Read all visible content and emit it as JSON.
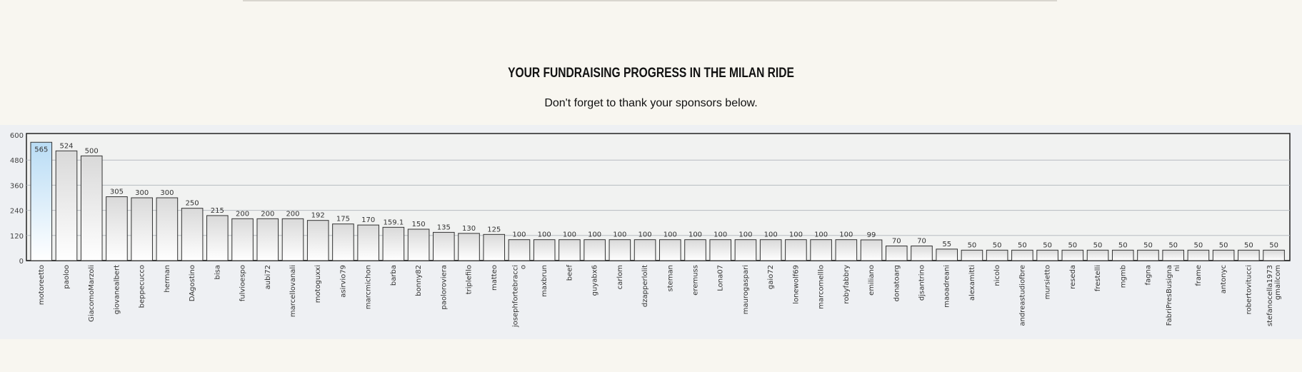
{
  "page": {
    "title": "YOUR FUNDRAISING PROGRESS IN THE MILAN RIDE",
    "subtitle": "Don't forget to thank your sponsors below."
  },
  "colors": {
    "background": "#f8f6f0",
    "chart_panel": "#eef0f3",
    "bar_fill_top": "#d9d9d9",
    "bar_fill_bottom": "#ffffff",
    "bar_highlight_top": "#b9dcf5",
    "bar_stroke": "#333333",
    "grid": "#b7bcc2"
  },
  "chart_data": {
    "type": "bar",
    "title": "",
    "xlabel": "",
    "ylabel": "",
    "ylim": [
      0,
      600
    ],
    "yticks": [
      0,
      120,
      240,
      360,
      480,
      600
    ],
    "grid": true,
    "highlight_index": 0,
    "categories": [
      "motoreetto",
      "paoloo",
      "GiacomoMarzoli",
      "giovanealbert",
      "beppecucco",
      "herman",
      "DAgostino",
      "bisa",
      "fulvioespo",
      "aubi72",
      "marcellovanali",
      "motoguxxi",
      "asirvio79",
      "marcmichon",
      "barba",
      "bonny82",
      "paoloroviera",
      "triplefilo",
      "matteo",
      [
        "josephfortebracci",
        "o"
      ],
      "maxbrun",
      "beef",
      "guyabx6",
      "carlom",
      "dzapperlolit",
      "steman",
      "eremuss",
      "Lona07",
      "maurogaspari",
      "gaio72",
      "lonewolf69",
      "marcomelllo",
      "robyfabbry",
      "emiliano",
      "donatoarg",
      "djsantrino",
      "maoadreani",
      "alexamitti",
      "nicolo",
      "andreastudiofbre",
      "mursietto",
      "reseda",
      "frestelli",
      "mgmb",
      "fagna",
      [
        "FabriPresBusigna",
        "ni"
      ],
      "frame",
      "antonyc",
      "robertovitucci",
      [
        "stefanocella1973",
        "gmailcom"
      ]
    ],
    "values": [
      565,
      524,
      500,
      305,
      300,
      300,
      250,
      215,
      200,
      200,
      200,
      192,
      175,
      170,
      159.1,
      150,
      135,
      130,
      125,
      100,
      100,
      100,
      100,
      100,
      100,
      100,
      100,
      100,
      100,
      100,
      100,
      100,
      100,
      99,
      70,
      70,
      55,
      50,
      50,
      50,
      50,
      50,
      50,
      50,
      50,
      50,
      50,
      50,
      50,
      50
    ]
  }
}
